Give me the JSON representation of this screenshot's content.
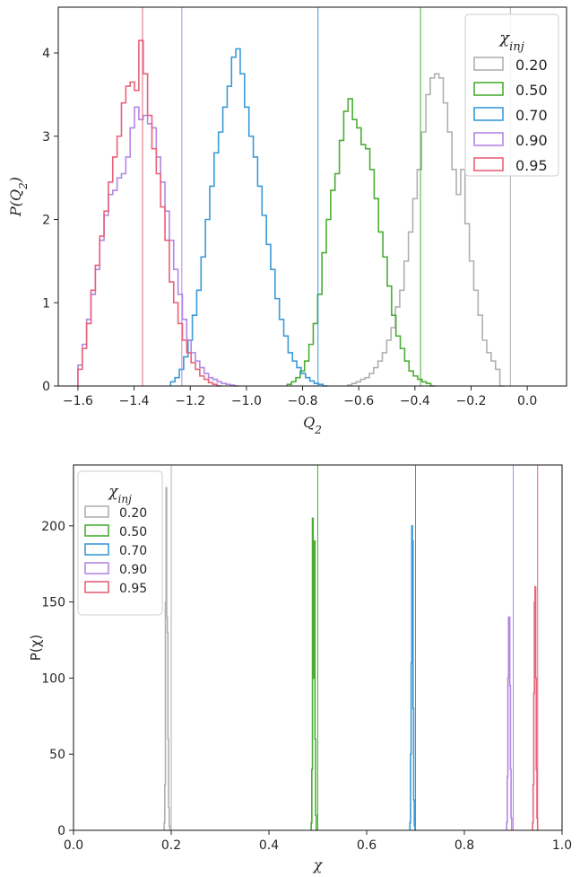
{
  "chart_data": [
    {
      "type": "histogram",
      "xlabel": "Q_2",
      "ylabel": "P(Q_2)",
      "xlim": [
        -1.67,
        0.14
      ],
      "ylim": [
        0,
        4.55
      ],
      "xticks": [
        -1.6,
        -1.4,
        -1.2,
        -1.0,
        -0.8,
        -0.6,
        -0.4,
        -0.2,
        0.0
      ],
      "xtick_labels": [
        "−1.6",
        "−1.4",
        "−1.2",
        "−1.0",
        "−0.8",
        "−0.6",
        "−0.4",
        "−0.2",
        "0.0"
      ],
      "yticks": [
        0,
        1,
        2,
        3,
        4
      ],
      "ytick_labels": [
        "0",
        "1",
        "2",
        "3",
        "4"
      ],
      "grid": false,
      "legend": {
        "title": "χ_inj",
        "placement": "top-right",
        "entries": [
          "0.20",
          "0.50",
          "0.70",
          "0.90",
          "0.95"
        ]
      },
      "series": [
        {
          "name": "0.20",
          "color": "#b0b0b0",
          "injected_value": -0.06,
          "bin_width": 0.0155,
          "edges_start": -0.64,
          "values": [
            0.01,
            0.03,
            0.05,
            0.08,
            0.1,
            0.15,
            0.22,
            0.3,
            0.4,
            0.55,
            0.7,
            0.95,
            1.15,
            1.5,
            1.85,
            2.25,
            2.6,
            3.05,
            3.5,
            3.7,
            3.75,
            3.7,
            3.4,
            3.05,
            2.6,
            2.3,
            2.6,
            1.95,
            1.5,
            1.15,
            0.85,
            0.55,
            0.4,
            0.3,
            0.2,
            0.0
          ]
        },
        {
          "name": "0.50",
          "color": "#4aad34",
          "injected_value": -0.38,
          "bin_width": 0.0155,
          "edges_start": -0.855,
          "values": [
            0.02,
            0.05,
            0.1,
            0.18,
            0.3,
            0.5,
            0.75,
            1.1,
            1.6,
            2.0,
            2.35,
            2.55,
            2.95,
            3.3,
            3.45,
            3.2,
            3.1,
            2.9,
            2.85,
            2.6,
            2.25,
            1.85,
            1.55,
            1.2,
            0.85,
            0.6,
            0.45,
            0.3,
            0.18,
            0.12,
            0.08,
            0.05,
            0.03,
            0.0
          ]
        },
        {
          "name": "0.70",
          "color": "#3a9ad8",
          "injected_value": -0.745,
          "bin_width": 0.0155,
          "edges_start": -1.27,
          "values": [
            0.05,
            0.1,
            0.2,
            0.35,
            0.55,
            0.85,
            1.15,
            1.55,
            2.0,
            2.4,
            2.8,
            3.05,
            3.35,
            3.6,
            3.95,
            4.05,
            3.75,
            3.35,
            3.0,
            2.75,
            2.4,
            2.05,
            1.7,
            1.4,
            1.05,
            0.8,
            0.6,
            0.4,
            0.3,
            0.22,
            0.15,
            0.1,
            0.06,
            0.03,
            0.02,
            0.0
          ]
        },
        {
          "name": "0.90",
          "color": "#b487e4",
          "injected_value": -1.23,
          "bin_width": 0.0155,
          "edges_start": -1.6,
          "values": [
            0.25,
            0.5,
            0.8,
            1.1,
            1.4,
            1.75,
            2.05,
            2.3,
            2.35,
            2.5,
            2.55,
            2.75,
            3.1,
            3.35,
            3.2,
            3.25,
            3.15,
            3.1,
            2.75,
            2.45,
            2.1,
            1.75,
            1.4,
            1.1,
            0.8,
            0.55,
            0.4,
            0.3,
            0.22,
            0.15,
            0.1,
            0.08,
            0.05,
            0.03,
            0.02,
            0.01,
            0.0
          ]
        },
        {
          "name": "0.95",
          "color": "#e8627a",
          "injected_value": -1.37,
          "bin_width": 0.0155,
          "edges_start": -1.6,
          "values": [
            0.2,
            0.45,
            0.75,
            1.15,
            1.45,
            1.8,
            2.1,
            2.45,
            2.75,
            3.0,
            3.4,
            3.6,
            3.65,
            3.55,
            4.15,
            3.75,
            3.25,
            2.85,
            2.55,
            2.15,
            1.75,
            1.25,
            1.0,
            0.75,
            0.55,
            0.4,
            0.28,
            0.2,
            0.12,
            0.08,
            0.04,
            0.02,
            0.0
          ]
        }
      ]
    },
    {
      "type": "histogram",
      "xlabel": "χ",
      "ylabel": "P(χ)",
      "xlim": [
        0.0,
        1.0
      ],
      "ylim": [
        0,
        240
      ],
      "xticks": [
        0.0,
        0.2,
        0.4,
        0.6,
        0.8,
        1.0
      ],
      "xtick_labels": [
        "0.0",
        "0.2",
        "0.4",
        "0.6",
        "0.8",
        "1.0"
      ],
      "yticks": [
        0,
        50,
        100,
        150,
        200
      ],
      "ytick_labels": [
        "0",
        "50",
        "100",
        "150",
        "200"
      ],
      "grid": false,
      "legend": {
        "title": "χ_inj",
        "placement": "top-left",
        "entries": [
          "0.20",
          "0.50",
          "0.70",
          "0.90",
          "0.95"
        ]
      },
      "series": [
        {
          "name": "0.20",
          "color": "#b0b0b0",
          "injected_value": 0.2,
          "bin_width": 0.0013,
          "edges_start": 0.1855,
          "values": [
            5,
            30,
            150,
            225,
            140,
            130,
            60,
            15,
            3,
            0
          ]
        },
        {
          "name": "0.50",
          "color": "#4aad34",
          "injected_value": 0.5,
          "bin_width": 0.0013,
          "edges_start": 0.4865,
          "values": [
            5,
            40,
            205,
            100,
            150,
            190,
            60,
            10,
            0
          ]
        },
        {
          "name": "0.70",
          "color": "#3a9ad8",
          "injected_value": 0.7,
          "bin_width": 0.0013,
          "edges_start": 0.6885,
          "values": [
            5,
            50,
            110,
            200,
            190,
            80,
            20,
            3,
            0
          ]
        },
        {
          "name": "0.90",
          "color": "#b487e4",
          "injected_value": 0.9,
          "bin_width": 0.0013,
          "edges_start": 0.8865,
          "values": [
            5,
            35,
            100,
            140,
            140,
            95,
            40,
            8,
            0
          ]
        },
        {
          "name": "0.95",
          "color": "#e8627a",
          "injected_value": 0.95,
          "bin_width": 0.0013,
          "edges_start": 0.9395,
          "values": [
            5,
            30,
            90,
            150,
            160,
            100,
            40,
            8,
            0
          ]
        }
      ]
    }
  ]
}
